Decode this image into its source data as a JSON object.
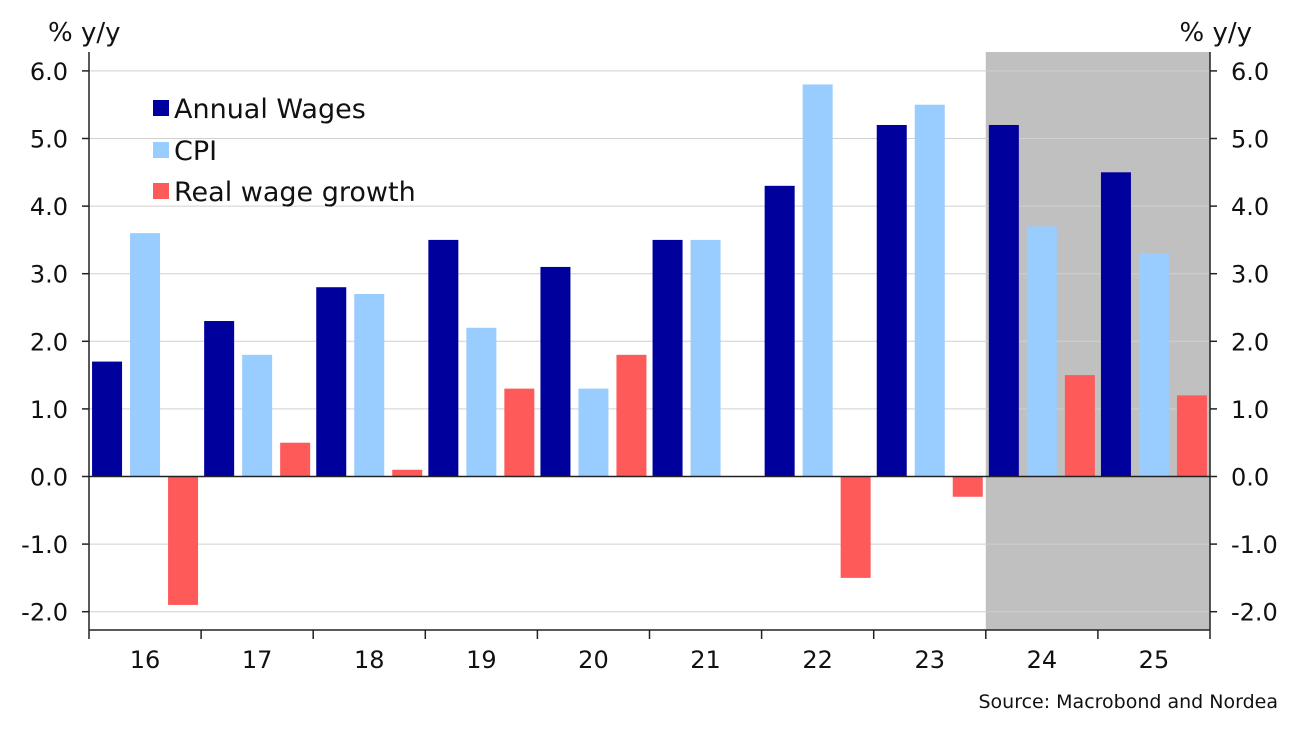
{
  "chart_data": {
    "type": "bar",
    "categories": [
      "16",
      "17",
      "18",
      "19",
      "20",
      "21",
      "22",
      "23",
      "24",
      "25"
    ],
    "series": [
      {
        "name": "Annual Wages",
        "color": "#00009c",
        "values": [
          1.7,
          2.3,
          2.8,
          3.5,
          3.1,
          3.5,
          4.3,
          5.2,
          5.2,
          4.5
        ]
      },
      {
        "name": "CPI",
        "color": "#99ccff",
        "values": [
          3.6,
          1.8,
          2.7,
          2.2,
          1.3,
          3.5,
          5.8,
          5.5,
          3.7,
          3.3
        ]
      },
      {
        "name": "Real wage growth",
        "color": "#ff5a5a",
        "values": [
          -1.9,
          0.5,
          0.1,
          1.3,
          1.8,
          null,
          -1.5,
          -0.3,
          1.5,
          1.2
        ]
      }
    ],
    "ylabel_left": "% y/y",
    "ylabel_right": "% y/y",
    "ylim": [
      -2.2,
      6.2
    ],
    "yticks": [
      "6.0",
      "5.0",
      "4.0",
      "3.0",
      "2.0",
      "1.0",
      "0.0",
      "-1.0",
      "-2.0"
    ],
    "shaded_categories": [
      "24",
      "25"
    ],
    "shade_color": "#c0c0c0",
    "grid": true,
    "legend_position": "top-left",
    "source": "Source: Macrobond and Nordea"
  }
}
